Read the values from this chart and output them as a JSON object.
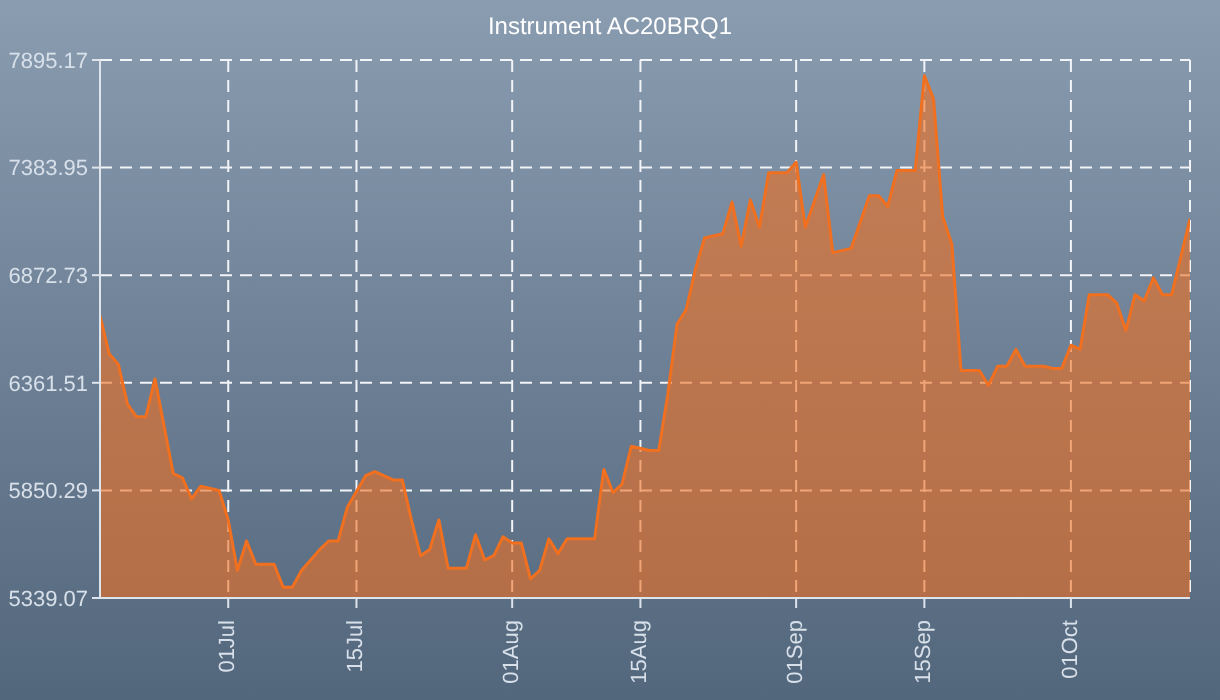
{
  "chart_data": {
    "type": "area",
    "title": "Instrument AC20BRQ1",
    "x": [
      "--06-17",
      "--06-18",
      "--06-19",
      "--06-20",
      "--06-21",
      "--06-22",
      "--06-23",
      "--06-25",
      "--06-26",
      "--06-27",
      "--06-28",
      "--06-30",
      "--07-01",
      "--07-02",
      "--07-03",
      "--07-04",
      "--07-06",
      "--07-07",
      "--07-08",
      "--07-09",
      "--07-11",
      "--07-12",
      "--07-13",
      "--07-14",
      "--07-16",
      "--07-17",
      "--07-19",
      "--07-20",
      "--07-21",
      "--07-22",
      "--07-23",
      "--07-24",
      "--07-25",
      "--07-27",
      "--07-28",
      "--07-29",
      "--07-30",
      "--07-31",
      "--08-01",
      "--08-02",
      "--08-03",
      "--08-04",
      "--08-05",
      "--08-06",
      "--08-07",
      "--08-10",
      "--08-11",
      "--08-12",
      "--08-13",
      "--08-14",
      "--08-16",
      "--08-17",
      "--08-18",
      "--08-19",
      "--08-20",
      "--08-21",
      "--08-22",
      "--08-24",
      "--08-25",
      "--08-26",
      "--08-27",
      "--08-28",
      "--08-29",
      "--08-31",
      "--09-01",
      "--09-02",
      "--09-04",
      "--09-05",
      "--09-07",
      "--09-09",
      "--09-10",
      "--09-11",
      "--09-12",
      "--09-14",
      "--09-15",
      "--09-16",
      "--09-17",
      "--09-18",
      "--09-19",
      "--09-21",
      "--09-22",
      "--09-23",
      "--09-24",
      "--09-25",
      "--09-26",
      "--09-28",
      "--09-29",
      "--09-30",
      "--10-01",
      "--10-02",
      "--10-03",
      "--10-05",
      "--10-06",
      "--10-07",
      "--10-08",
      "--10-09",
      "--10-10",
      "--10-11",
      "--10-12",
      "--10-13",
      "--10-14"
    ],
    "series": [
      {
        "color": "#f07020",
        "values": [
          6680,
          6500,
          6450,
          6260,
          6200,
          6200,
          6380,
          5930,
          5910,
          5810,
          5870,
          5850,
          5710,
          5470,
          5610,
          5500,
          5500,
          5390,
          5390,
          5470,
          5570,
          5610,
          5610,
          5770,
          5920,
          5940,
          5900,
          5900,
          5710,
          5540,
          5570,
          5710,
          5480,
          5480,
          5640,
          5520,
          5540,
          5630,
          5600,
          5600,
          5430,
          5470,
          5620,
          5550,
          5620,
          5620,
          5950,
          5840,
          5880,
          6060,
          6040,
          6040,
          6310,
          6640,
          6710,
          6900,
          7050,
          7070,
          7220,
          7010,
          7230,
          7100,
          7360,
          7360,
          7410,
          7100,
          7350,
          6980,
          7000,
          7250,
          7250,
          7200,
          7370,
          7370,
          7820,
          7710,
          7150,
          7020,
          6420,
          6420,
          6350,
          6440,
          6440,
          6520,
          6440,
          6440,
          6430,
          6430,
          6540,
          6520,
          6780,
          6780,
          6740,
          6610,
          6780,
          6750,
          6860,
          6780,
          6780,
          6960,
          7140
        ]
      }
    ],
    "xlim": [
      "--06-17",
      "--10-14"
    ],
    "xticks": [
      {
        "value": "--07-01",
        "label": "01Jul"
      },
      {
        "value": "--07-15",
        "label": "15Jul"
      },
      {
        "value": "--08-01",
        "label": "01Aug"
      },
      {
        "value": "--08-15",
        "label": "15Aug"
      },
      {
        "value": "--09-01",
        "label": "01Sep"
      },
      {
        "value": "--09-15",
        "label": "15Sep"
      },
      {
        "value": "--10-01",
        "label": "01Oct"
      }
    ],
    "ylim": [
      5339.07,
      7895.17
    ],
    "yticks": [
      5339.07,
      5850.29,
      6361.51,
      6872.73,
      7383.95,
      7895.17
    ],
    "grid": true,
    "legend": false
  }
}
